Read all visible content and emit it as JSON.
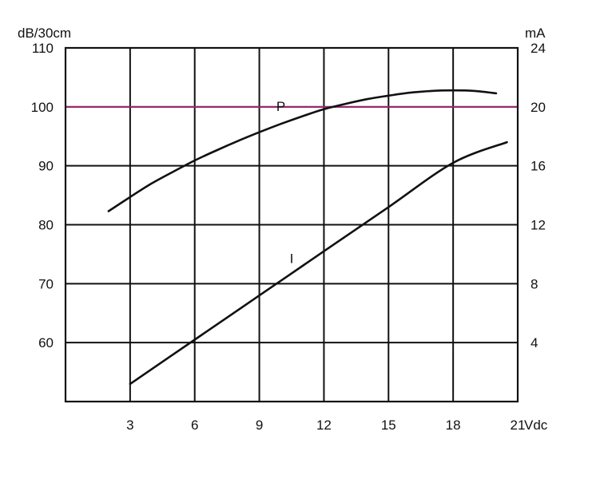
{
  "chart_data": {
    "type": "line",
    "xlabel": "Vdc",
    "y_left_label": "dB/30cm",
    "y_right_label": "mA",
    "xlim": [
      0,
      21
    ],
    "x_ticks": [
      3,
      6,
      9,
      12,
      15,
      18,
      21
    ],
    "ylim_left": [
      50,
      110
    ],
    "y_left_ticks": [
      60,
      70,
      80,
      90,
      100,
      110
    ],
    "ylim_right": [
      0,
      24
    ],
    "y_right_ticks": [
      4,
      8,
      12,
      16,
      20,
      24
    ],
    "grid": true,
    "highlight_line": {
      "axis": "left",
      "value": 100,
      "color": "#a0256e"
    },
    "series": [
      {
        "name": "P",
        "axis": "left",
        "x": [
          2,
          3,
          4,
          5,
          6,
          7,
          8,
          9,
          10,
          11,
          12,
          13,
          14,
          15,
          16,
          17,
          18,
          19,
          20
        ],
        "y": [
          82.3,
          84.7,
          87.0,
          89.0,
          90.9,
          92.6,
          94.2,
          95.7,
          97.1,
          98.4,
          99.6,
          100.5,
          101.3,
          101.9,
          102.4,
          102.7,
          102.8,
          102.7,
          102.3
        ]
      },
      {
        "name": "I",
        "axis": "right",
        "x": [
          3,
          6,
          9,
          12,
          15,
          18,
          20.5
        ],
        "y": [
          1.2,
          4.2,
          7.2,
          10.2,
          13.2,
          16.2,
          17.6
        ]
      }
    ],
    "curve_label_positions": [
      {
        "series": "P",
        "x": 10,
        "y_left": 99.3
      },
      {
        "series": "I",
        "x": 10.5,
        "y_left": 73.5
      }
    ]
  }
}
